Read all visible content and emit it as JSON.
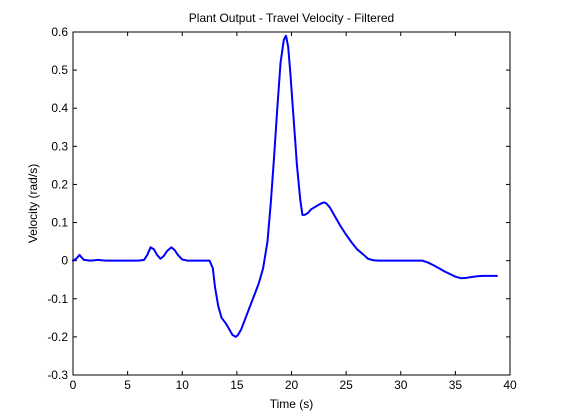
{
  "chart_data": {
    "type": "line",
    "title": "Plant Output - Travel Velocity - Filtered",
    "xlabel": "Time (s)",
    "ylabel": "Velocity (rad/s)",
    "xlim": [
      0,
      40
    ],
    "ylim": [
      -0.3,
      0.6
    ],
    "xticks": [
      "0",
      "5",
      "10",
      "15",
      "20",
      "25",
      "30",
      "35",
      "40"
    ],
    "yticks": [
      "-0.3",
      "-0.2",
      "-0.1",
      "0",
      "0.1",
      "0.2",
      "0.3",
      "0.4",
      "0.5",
      "0.6"
    ],
    "grid": false,
    "legend": "none",
    "line_color": "#0000ff",
    "series": [
      {
        "x": [
          0,
          0.3,
          0.6,
          0.8,
          1.0,
          1.3,
          1.6,
          2.0,
          2.3,
          2.6,
          3.0,
          4.0,
          5.0,
          6.0,
          6.5,
          6.8,
          7.1,
          7.4,
          7.7,
          8.0,
          8.3,
          8.6,
          9.0,
          9.3,
          9.6,
          10.0,
          10.5,
          11.0,
          11.5,
          12.0,
          12.5,
          12.8,
          13.0,
          13.3,
          13.6,
          14.0,
          14.3,
          14.6,
          14.9,
          15.1,
          15.4,
          15.8,
          16.2,
          16.6,
          17.0,
          17.4,
          17.8,
          18.1,
          18.4,
          18.7,
          19.0,
          19.3,
          19.5,
          19.7,
          19.9,
          20.2,
          20.5,
          20.8,
          21.0,
          21.2,
          21.5,
          21.8,
          22.1,
          22.4,
          22.7,
          23.0,
          23.2,
          23.5,
          23.8,
          24.1,
          24.5,
          25.0,
          25.5,
          26.0,
          26.5,
          27.0,
          27.5,
          28.0,
          28.5,
          29.0,
          30.0,
          31.0,
          31.5,
          32.0,
          32.5,
          33.0,
          33.5,
          34.0,
          34.5,
          35.0,
          35.5,
          36.0,
          36.5,
          37.0,
          37.5,
          38.0,
          38.5,
          38.8
        ],
        "values": [
          0,
          0.005,
          0.015,
          0.008,
          0.002,
          0.001,
          0.0,
          0.001,
          0.002,
          0.001,
          0.0,
          0.0,
          0.0,
          0.0,
          0.002,
          0.015,
          0.035,
          0.03,
          0.015,
          0.005,
          0.012,
          0.025,
          0.035,
          0.028,
          0.015,
          0.003,
          0.0,
          0.0,
          0.0,
          0.0,
          0.0,
          -0.02,
          -0.07,
          -0.12,
          -0.15,
          -0.165,
          -0.18,
          -0.195,
          -0.2,
          -0.195,
          -0.18,
          -0.15,
          -0.12,
          -0.09,
          -0.06,
          -0.02,
          0.05,
          0.15,
          0.27,
          0.4,
          0.52,
          0.58,
          0.59,
          0.56,
          0.49,
          0.37,
          0.25,
          0.16,
          0.12,
          0.12,
          0.125,
          0.135,
          0.14,
          0.145,
          0.15,
          0.153,
          0.15,
          0.14,
          0.125,
          0.11,
          0.09,
          0.068,
          0.048,
          0.03,
          0.018,
          0.005,
          0.001,
          0.0,
          0.0,
          0.0,
          0.0,
          0.0,
          0.0,
          0.0,
          -0.005,
          -0.012,
          -0.02,
          -0.028,
          -0.035,
          -0.042,
          -0.046,
          -0.045,
          -0.043,
          -0.041,
          -0.04,
          -0.04,
          -0.04,
          -0.04
        ]
      }
    ]
  }
}
